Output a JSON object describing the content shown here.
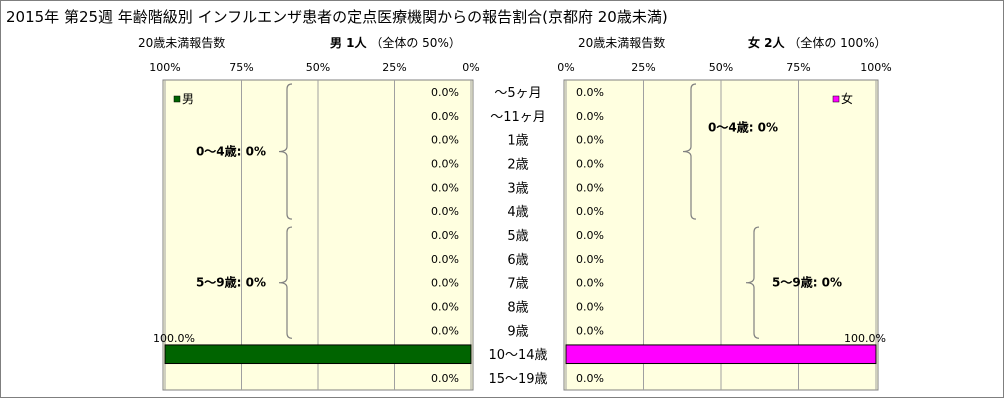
{
  "title": "2015年 第25週 年齢階級別 インフルエンザ患者の定点医療機関からの報告割合(京都府 20歳未満)",
  "male_header": {
    "count_label": "20歳未満報告数",
    "sex_count": "男 1人",
    "share": "（全体の 50%）"
  },
  "female_header": {
    "count_label": "20歳未満報告数",
    "sex_count": "女 2人",
    "share": "（全体の 100%）"
  },
  "chart_data": {
    "type": "bar",
    "categories": [
      "～5ヶ月",
      "～11ヶ月",
      "1歳",
      "2歳",
      "3歳",
      "4歳",
      "5歳",
      "6歳",
      "7歳",
      "8歳",
      "9歳",
      "10～14歳",
      "15～19歳"
    ],
    "series": [
      {
        "name": "男",
        "values": [
          0,
          0,
          0,
          0,
          0,
          0,
          0,
          0,
          0,
          0,
          0,
          100,
          0
        ],
        "color": "#006400"
      },
      {
        "name": "女",
        "values": [
          0,
          0,
          0,
          0,
          0,
          0,
          0,
          0,
          0,
          0,
          0,
          100,
          0
        ],
        "color": "#ff00ff"
      }
    ],
    "male_axis_ticks": [
      "100%",
      "75%",
      "50%",
      "25%",
      "0%"
    ],
    "female_axis_ticks": [
      "0%",
      "25%",
      "50%",
      "75%",
      "100%"
    ],
    "xlim": [
      0,
      100
    ],
    "value_labels": {
      "male": [
        "0.0%",
        "0.0%",
        "0.0%",
        "0.0%",
        "0.0%",
        "0.0%",
        "0.0%",
        "0.0%",
        "0.0%",
        "0.0%",
        "0.0%",
        "100.0%",
        "0.0%"
      ],
      "female": [
        "0.0%",
        "0.0%",
        "0.0%",
        "0.0%",
        "0.0%",
        "0.0%",
        "0.0%",
        "0.0%",
        "0.0%",
        "0.0%",
        "0.0%",
        "100.0%",
        "0.0%"
      ]
    },
    "annotations": {
      "male_0_4": "0～4歳: 0%",
      "male_5_9": "5～9歳: 0%",
      "female_0_4": "0～4歳: 0%",
      "female_5_9": "5～9歳: 0%"
    },
    "plot_background": "#ffffe0",
    "grid": true,
    "legend_position": "top-corner"
  }
}
